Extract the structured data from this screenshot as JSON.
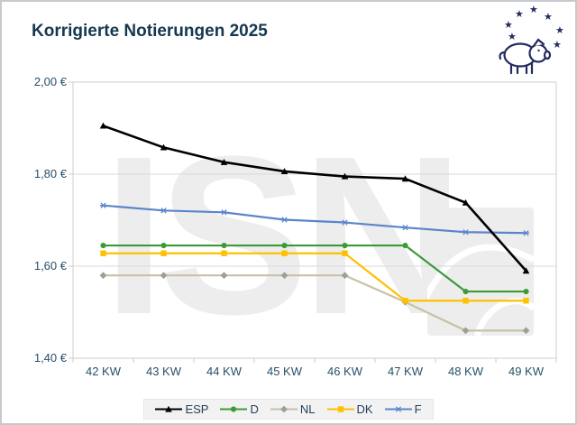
{
  "title": "Korrigierte Notierungen 2025",
  "watermark": {
    "text": "ISN"
  },
  "icons": {
    "star": "★"
  },
  "logo": {
    "name": "pig-with-eu-stars"
  },
  "colors": {
    "title_text": "#14384f",
    "axis_text": "#26506a",
    "gridline": "#d9d9d9",
    "plot_border": "#cdcdcd",
    "legend_bg": "#f2f2f2",
    "watermark": "#ededed",
    "logo_navy": "#232b5f"
  },
  "chart_data": {
    "type": "line",
    "title": "Korrigierte Notierungen 2025",
    "categories": [
      "42 KW",
      "43 KW",
      "44 KW",
      "45 KW",
      "46 KW",
      "47 KW",
      "48 KW",
      "49 KW"
    ],
    "y_tick_labels": [
      "2,00 €",
      "1,80 €",
      "1,60 €",
      "1,40 €"
    ],
    "y_tick_values": [
      2.0,
      1.8,
      1.6,
      1.4
    ],
    "ylim": [
      1.4,
      2.0
    ],
    "ylabel": "€",
    "grid": true,
    "legend_position": "bottom",
    "series": [
      {
        "name": "ESP",
        "color": "#000000",
        "marker": "triangle",
        "marker_color": "#000000",
        "line_width": 2.6,
        "values": [
          1.905,
          1.858,
          1.826,
          1.806,
          1.795,
          1.79,
          1.738,
          1.59
        ]
      },
      {
        "name": "D",
        "color": "#3c9b37",
        "marker": "circle",
        "marker_color": "#3c9b37",
        "line_width": 2.2,
        "values": [
          1.645,
          1.645,
          1.645,
          1.645,
          1.645,
          1.645,
          1.545,
          1.545
        ]
      },
      {
        "name": "NL",
        "color": "#c8c1a6",
        "marker": "diamond",
        "marker_color": "#a09e98",
        "line_width": 2.2,
        "values": [
          1.58,
          1.58,
          1.58,
          1.58,
          1.58,
          1.522,
          1.46,
          1.46
        ]
      },
      {
        "name": "DK",
        "color": "#ffc000",
        "marker": "square",
        "marker_color": "#ffc000",
        "line_width": 2.2,
        "values": [
          1.628,
          1.628,
          1.628,
          1.628,
          1.628,
          1.525,
          1.525,
          1.525
        ]
      },
      {
        "name": "F",
        "color": "#5a85cc",
        "marker": "star",
        "marker_color": "#5a85cc",
        "line_width": 2.2,
        "values": [
          1.732,
          1.721,
          1.717,
          1.701,
          1.695,
          1.684,
          1.674,
          1.672
        ]
      }
    ],
    "draw_order": [
      "NL",
      "DK",
      "D",
      "F",
      "ESP"
    ]
  }
}
